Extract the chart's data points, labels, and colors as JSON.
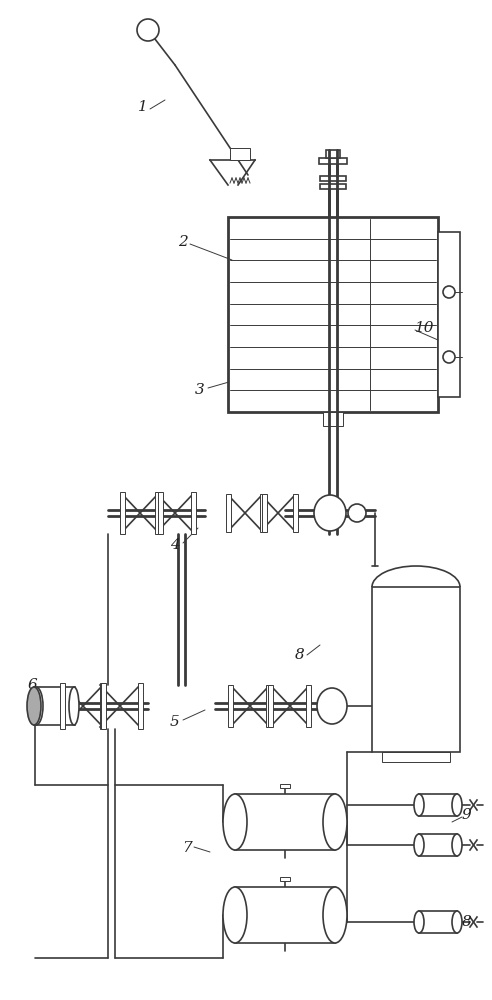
{
  "bg_color": "#ffffff",
  "line_color": "#3a3a3a",
  "label_color": "#222222",
  "lw": 1.2,
  "lw_thin": 0.7,
  "lw_thick": 2.0
}
